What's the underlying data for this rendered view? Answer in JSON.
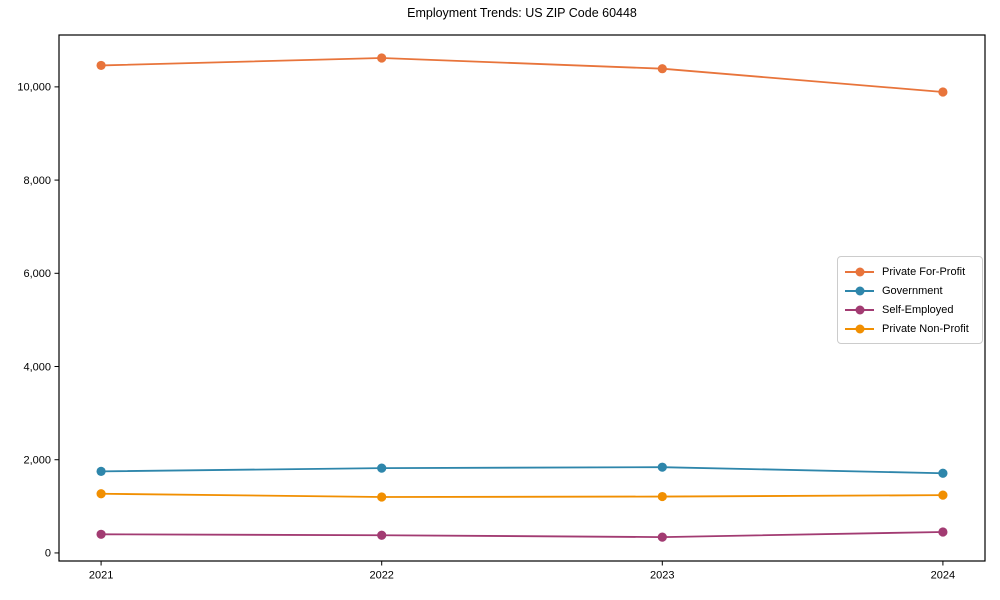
{
  "title": "Employment Trends: US ZIP Code 60448",
  "chart_data": {
    "type": "line",
    "title": "Employment Trends: US ZIP Code 60448",
    "xlabel": "",
    "ylabel": "",
    "categories": [
      "2021",
      "2022",
      "2023",
      "2024"
    ],
    "series": [
      {
        "name": "Private For-Profit",
        "color": "#E8743B",
        "values": [
          10460,
          10620,
          10390,
          9890
        ]
      },
      {
        "name": "Government",
        "color": "#2E86AB",
        "values": [
          1750,
          1820,
          1840,
          1710
        ]
      },
      {
        "name": "Self-Employed",
        "color": "#A23B72",
        "values": [
          400,
          380,
          340,
          450
        ]
      },
      {
        "name": "Private Non-Profit",
        "color": "#F18F01",
        "values": [
          1270,
          1200,
          1210,
          1240
        ]
      }
    ],
    "xlim": [
      2020.85,
      2024.15
    ],
    "ylim": [
      -173,
      11113
    ],
    "yticks": [
      0,
      2000,
      4000,
      6000,
      8000,
      10000
    ],
    "ytick_labels": [
      "0",
      "2,000",
      "4,000",
      "6,000",
      "8,000",
      "10,000"
    ],
    "xtick_labels": [
      "2021",
      "2022",
      "2023",
      "2024"
    ],
    "grid": false,
    "legend_position": "center right",
    "marker": "o",
    "line_width": 1.8,
    "marker_radius": 4.6,
    "spine_color": "#000000",
    "background_color": "#ffffff"
  }
}
